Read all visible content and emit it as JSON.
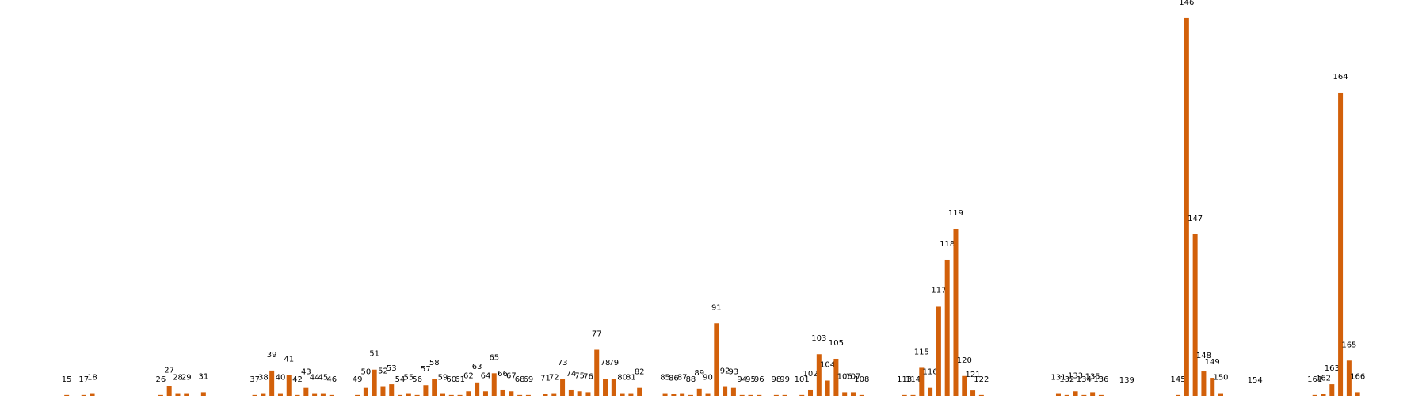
{
  "chart_data": {
    "type": "bar",
    "color": "#d2600a",
    "x": [
      15,
      17,
      18,
      26,
      27,
      28,
      29,
      31,
      37,
      38,
      39,
      40,
      41,
      42,
      43,
      44,
      45,
      46,
      49,
      50,
      51,
      52,
      53,
      54,
      55,
      56,
      57,
      58,
      59,
      60,
      61,
      62,
      63,
      64,
      65,
      66,
      67,
      68,
      69,
      71,
      72,
      73,
      74,
      75,
      76,
      77,
      78,
      79,
      80,
      81,
      82,
      85,
      86,
      87,
      88,
      89,
      90,
      91,
      92,
      93,
      94,
      95,
      96,
      98,
      99,
      101,
      102,
      103,
      104,
      105,
      106,
      107,
      108,
      113,
      114,
      115,
      116,
      117,
      118,
      119,
      120,
      121,
      122,
      131,
      132,
      133,
      134,
      135,
      136,
      139,
      145,
      146,
      147,
      148,
      149,
      150,
      154,
      161,
      162,
      163,
      164,
      165,
      166
    ],
    "values": [
      1,
      1,
      3,
      1,
      11,
      3,
      3,
      4,
      1,
      3,
      28,
      3,
      23,
      1,
      9,
      3,
      3,
      1,
      1,
      9,
      29,
      10,
      13,
      1,
      3,
      1,
      12,
      19,
      3,
      1,
      1,
      5,
      15,
      5,
      25,
      7,
      5,
      1,
      1,
      2,
      3,
      19,
      7,
      5,
      4,
      51,
      19,
      19,
      3,
      3,
      9,
      3,
      2,
      3,
      1,
      8,
      3,
      80,
      10,
      9,
      1,
      1,
      1,
      1,
      1,
      1,
      7,
      46,
      17,
      41,
      4,
      4,
      1,
      1,
      1,
      31,
      9,
      99,
      150,
      184,
      22,
      6,
      1,
      3,
      1,
      5,
      1,
      4,
      1,
      0,
      1,
      416,
      178,
      27,
      20,
      3,
      0,
      1,
      2,
      13,
      334,
      39,
      4
    ],
    "xlim": [
      7.2,
      174
    ],
    "ylim": [
      0,
      436
    ]
  }
}
